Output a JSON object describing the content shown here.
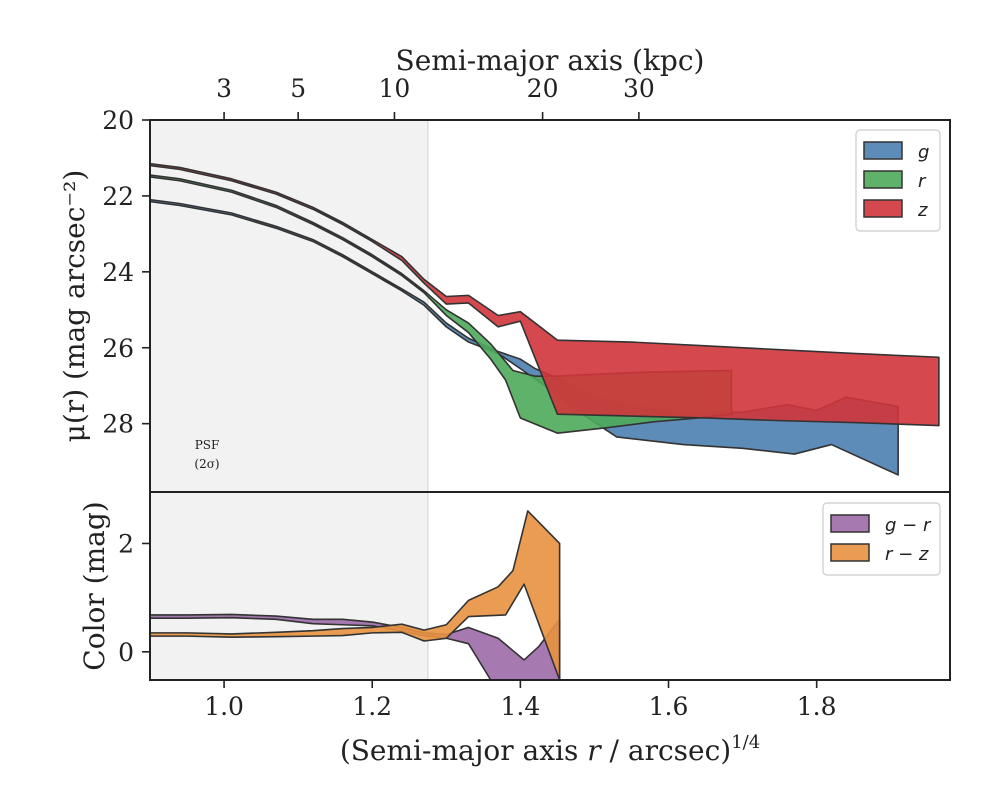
{
  "chart_data": [
    {
      "type": "area",
      "panel": "top",
      "ylabel": "μ(r) (mag arcsec⁻²)",
      "top_axis_label": "Semi-major axis (kpc)",
      "top_axis_ticks": [
        {
          "label": "3",
          "x": 1.0
        },
        {
          "label": "5",
          "x": 1.1
        },
        {
          "label": "10",
          "x": 1.23
        },
        {
          "label": "20",
          "x": 1.43
        },
        {
          "label": "30",
          "x": 1.56
        }
      ],
      "xlim": [
        0.9,
        1.98
      ],
      "ylim": [
        20,
        29.8
      ],
      "y_inverted": true,
      "yticks": [
        "20",
        "22",
        "24",
        "26",
        "28"
      ],
      "shaded_region": {
        "x_start": 0.9,
        "x_end": 1.275
      },
      "annotation": [
        "PSF",
        "(2σ)"
      ],
      "legend_position": "top-right",
      "colors": {
        "g": "#4c7fb0",
        "r": "#4caa5a",
        "z": "#d0353b",
        "psf": "#f2f2f2"
      },
      "series": [
        {
          "name": "g",
          "upper": [
            [
              0.9,
              22.1
            ],
            [
              0.94,
              22.2
            ],
            [
              1.01,
              22.45
            ],
            [
              1.07,
              22.8
            ],
            [
              1.12,
              23.15
            ],
            [
              1.16,
              23.55
            ],
            [
              1.2,
              24.0
            ],
            [
              1.24,
              24.45
            ],
            [
              1.27,
              24.8
            ],
            [
              1.3,
              25.35
            ],
            [
              1.33,
              25.75
            ],
            [
              1.37,
              26.1
            ],
            [
              1.4,
              26.3
            ],
            [
              1.42,
              26.55
            ],
            [
              1.45,
              26.8
            ],
            [
              1.5,
              27.3
            ],
            [
              1.56,
              27.55
            ],
            [
              1.62,
              27.7
            ],
            [
              1.7,
              27.7
            ],
            [
              1.76,
              27.5
            ],
            [
              1.8,
              27.65
            ],
            [
              1.84,
              27.3
            ],
            [
              1.91,
              27.55
            ]
          ],
          "lower": [
            [
              0.9,
              22.15
            ],
            [
              0.94,
              22.25
            ],
            [
              1.01,
              22.5
            ],
            [
              1.07,
              22.85
            ],
            [
              1.12,
              23.2
            ],
            [
              1.16,
              23.6
            ],
            [
              1.2,
              24.05
            ],
            [
              1.24,
              24.5
            ],
            [
              1.27,
              24.88
            ],
            [
              1.3,
              25.45
            ],
            [
              1.33,
              25.85
            ],
            [
              1.37,
              26.15
            ],
            [
              1.4,
              26.55
            ],
            [
              1.44,
              27.1
            ],
            [
              1.48,
              27.7
            ],
            [
              1.53,
              28.35
            ],
            [
              1.62,
              28.55
            ],
            [
              1.7,
              28.65
            ],
            [
              1.77,
              28.8
            ],
            [
              1.82,
              28.55
            ],
            [
              1.91,
              29.35
            ]
          ]
        },
        {
          "name": "r",
          "upper": [
            [
              0.9,
              21.45
            ],
            [
              0.94,
              21.55
            ],
            [
              1.01,
              21.85
            ],
            [
              1.07,
              22.25
            ],
            [
              1.12,
              22.7
            ],
            [
              1.16,
              23.1
            ],
            [
              1.2,
              23.55
            ],
            [
              1.24,
              24.05
            ],
            [
              1.27,
              24.5
            ],
            [
              1.3,
              25.0
            ],
            [
              1.33,
              25.35
            ],
            [
              1.36,
              25.9
            ],
            [
              1.39,
              26.6
            ],
            [
              1.42,
              26.75
            ],
            [
              1.45,
              26.75
            ],
            [
              1.5,
              26.7
            ],
            [
              1.56,
              26.65
            ],
            [
              1.62,
              26.62
            ],
            [
              1.685,
              26.6
            ]
          ],
          "lower": [
            [
              0.9,
              21.5
            ],
            [
              0.94,
              21.6
            ],
            [
              1.01,
              21.9
            ],
            [
              1.07,
              22.3
            ],
            [
              1.12,
              22.75
            ],
            [
              1.16,
              23.15
            ],
            [
              1.2,
              23.6
            ],
            [
              1.24,
              24.1
            ],
            [
              1.27,
              24.55
            ],
            [
              1.3,
              25.15
            ],
            [
              1.33,
              25.6
            ],
            [
              1.36,
              26.3
            ],
            [
              1.38,
              26.85
            ],
            [
              1.4,
              27.85
            ],
            [
              1.45,
              28.25
            ],
            [
              1.52,
              28.1
            ],
            [
              1.58,
              27.95
            ],
            [
              1.64,
              27.85
            ],
            [
              1.685,
              27.75
            ]
          ]
        },
        {
          "name": "z",
          "upper": [
            [
              0.9,
              21.15
            ],
            [
              0.94,
              21.25
            ],
            [
              1.01,
              21.55
            ],
            [
              1.07,
              21.9
            ],
            [
              1.12,
              22.3
            ],
            [
              1.16,
              22.7
            ],
            [
              1.2,
              23.15
            ],
            [
              1.24,
              23.6
            ],
            [
              1.27,
              24.2
            ],
            [
              1.3,
              24.65
            ],
            [
              1.33,
              24.62
            ],
            [
              1.37,
              25.15
            ],
            [
              1.4,
              25.05
            ],
            [
              1.45,
              25.8
            ],
            [
              1.55,
              25.85
            ],
            [
              1.65,
              25.95
            ],
            [
              1.75,
              26.05
            ],
            [
              1.85,
              26.15
            ],
            [
              1.965,
              26.25
            ]
          ],
          "lower": [
            [
              0.9,
              21.2
            ],
            [
              0.94,
              21.3
            ],
            [
              1.01,
              21.6
            ],
            [
              1.07,
              21.95
            ],
            [
              1.12,
              22.35
            ],
            [
              1.16,
              22.75
            ],
            [
              1.2,
              23.2
            ],
            [
              1.24,
              23.7
            ],
            [
              1.27,
              24.3
            ],
            [
              1.3,
              24.85
            ],
            [
              1.33,
              24.82
            ],
            [
              1.37,
              25.45
            ],
            [
              1.4,
              25.3
            ],
            [
              1.45,
              27.75
            ],
            [
              1.55,
              27.8
            ],
            [
              1.65,
              27.85
            ],
            [
              1.75,
              27.92
            ],
            [
              1.85,
              27.97
            ],
            [
              1.965,
              28.05
            ]
          ]
        }
      ]
    },
    {
      "type": "area",
      "panel": "bottom",
      "xlabel": "(Semi-major axis r / arcsec)^1/4",
      "xlabel_main": "(Semi-major axis ",
      "xlabel_var": "r",
      "xlabel_tail": " / arcsec)",
      "xlabel_sup": "1/4",
      "ylabel": "Color (mag)",
      "xlim": [
        0.9,
        1.98
      ],
      "ylim": [
        -0.52,
        2.95
      ],
      "xticks": [
        "1.0",
        "1.2",
        "1.4",
        "1.6",
        "1.8"
      ],
      "yticks": [
        "0",
        "2"
      ],
      "legend_position": "top-right",
      "colors": {
        "g-r": "#9c6aa8",
        "r-z": "#e8923f"
      },
      "series": [
        {
          "name": "g − r",
          "upper": [
            [
              0.9,
              0.68
            ],
            [
              0.95,
              0.68
            ],
            [
              1.01,
              0.69
            ],
            [
              1.07,
              0.66
            ],
            [
              1.12,
              0.6
            ],
            [
              1.16,
              0.6
            ],
            [
              1.2,
              0.55
            ],
            [
              1.24,
              0.45
            ],
            [
              1.27,
              0.35
            ],
            [
              1.3,
              0.32
            ],
            [
              1.33,
              0.45
            ],
            [
              1.37,
              0.25
            ],
            [
              1.405,
              -0.15
            ],
            [
              1.425,
              0.1
            ],
            [
              1.453,
              0.6
            ]
          ],
          "lower": [
            [
              0.9,
              0.62
            ],
            [
              0.95,
              0.62
            ],
            [
              1.01,
              0.63
            ],
            [
              1.07,
              0.6
            ],
            [
              1.12,
              0.52
            ],
            [
              1.16,
              0.5
            ],
            [
              1.2,
              0.48
            ],
            [
              1.24,
              0.38
            ],
            [
              1.27,
              0.3
            ],
            [
              1.3,
              0.25
            ],
            [
              1.33,
              0.15
            ],
            [
              1.36,
              -0.52
            ],
            [
              1.453,
              -0.52
            ]
          ]
        },
        {
          "name": "r − z",
          "upper": [
            [
              0.9,
              0.35
            ],
            [
              0.95,
              0.35
            ],
            [
              1.01,
              0.33
            ],
            [
              1.07,
              0.36
            ],
            [
              1.12,
              0.39
            ],
            [
              1.16,
              0.43
            ],
            [
              1.2,
              0.45
            ],
            [
              1.24,
              0.51
            ],
            [
              1.27,
              0.4
            ],
            [
              1.3,
              0.5
            ],
            [
              1.33,
              0.95
            ],
            [
              1.37,
              1.2
            ],
            [
              1.39,
              1.5
            ],
            [
              1.41,
              2.6
            ],
            [
              1.453,
              2.0
            ]
          ],
          "lower": [
            [
              0.9,
              0.29
            ],
            [
              0.95,
              0.29
            ],
            [
              1.01,
              0.27
            ],
            [
              1.07,
              0.28
            ],
            [
              1.12,
              0.29
            ],
            [
              1.16,
              0.3
            ],
            [
              1.2,
              0.35
            ],
            [
              1.24,
              0.36
            ],
            [
              1.27,
              0.2
            ],
            [
              1.3,
              0.25
            ],
            [
              1.33,
              0.65
            ],
            [
              1.38,
              0.68
            ],
            [
              1.405,
              1.25
            ],
            [
              1.453,
              -0.52
            ]
          ]
        }
      ]
    }
  ]
}
